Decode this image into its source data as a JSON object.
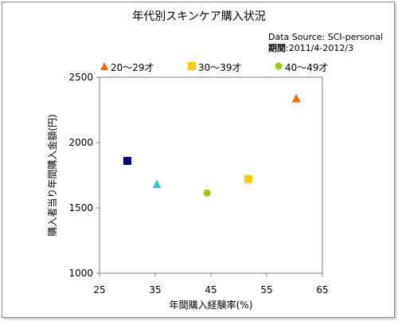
{
  "chart_data": {
    "type": "scatter",
    "title": "年代別スキンケア購入状況",
    "source_line1": "Data Source: SCI-personal",
    "source_line2_label": "期間",
    "source_line2_value": ":2011/4-2012/3",
    "xlabel": "年間購入経験率(%)",
    "ylabel": "購入者当り年間購入金額(円)",
    "xlim": [
      25,
      65
    ],
    "ylim": [
      1000,
      2500
    ],
    "xticks": [
      25,
      35,
      45,
      55,
      65
    ],
    "yticks": [
      1000,
      1500,
      2000,
      2500
    ],
    "legend_position": "top-left",
    "legend": [
      {
        "label": "20～29才",
        "marker": "triangle",
        "color": "#FF6600"
      },
      {
        "label": "30～39才",
        "marker": "square",
        "color": "#FFCC00"
      },
      {
        "label": "40～49才",
        "marker": "circle",
        "color": "#99CC00"
      }
    ],
    "points": [
      {
        "x": 30,
        "y": 1860,
        "marker": "square",
        "color": "#000080"
      },
      {
        "x": 35.3,
        "y": 1680,
        "marker": "triangle",
        "color": "#33CCCC"
      },
      {
        "x": 44.3,
        "y": 1615,
        "marker": "circle",
        "color": "#99CC00"
      },
      {
        "x": 51.7,
        "y": 1720,
        "marker": "square",
        "color": "#FFCC00"
      },
      {
        "x": 60.3,
        "y": 2335,
        "marker": "triangle",
        "color": "#FF6600"
      }
    ]
  }
}
